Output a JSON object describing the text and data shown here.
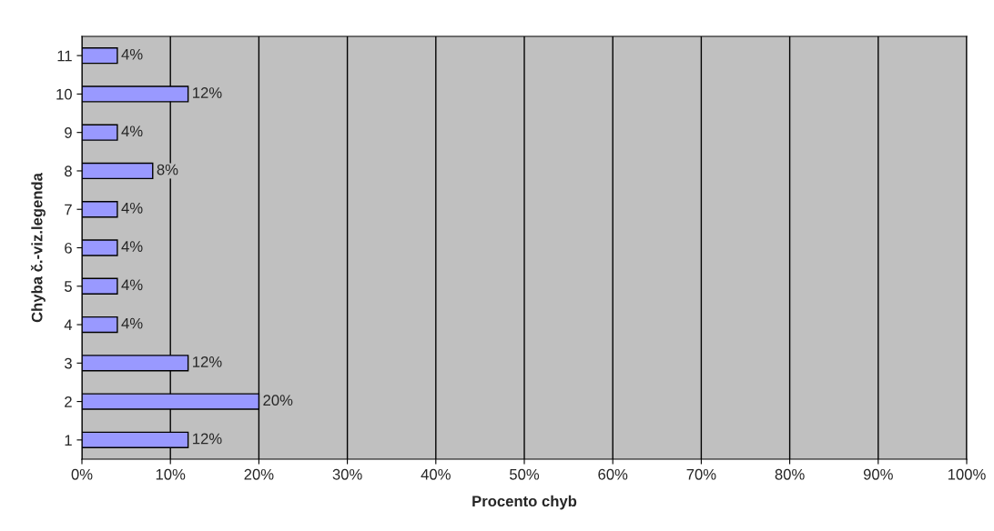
{
  "chart_data": {
    "type": "bar",
    "orientation": "horizontal",
    "xlabel": "Procento chyb",
    "ylabel": "Chyba č.-viz.legenda",
    "categories": [
      "11",
      "10",
      "9",
      "8",
      "7",
      "6",
      "5",
      "4",
      "3",
      "2",
      "1"
    ],
    "values": [
      4,
      12,
      4,
      8,
      4,
      4,
      4,
      4,
      12,
      20,
      12
    ],
    "value_labels": [
      "4%",
      "12%",
      "4%",
      "8%",
      "4%",
      "4%",
      "4%",
      "4%",
      "12%",
      "20%",
      "12%"
    ],
    "color": "#9999ff",
    "xlim": [
      0,
      100
    ],
    "xticks": [
      {
        "value": 0,
        "label": "0%"
      },
      {
        "value": 10,
        "label": "10%"
      },
      {
        "value": 20,
        "label": "20%"
      },
      {
        "value": 30,
        "label": "30%"
      },
      {
        "value": 40,
        "label": "40%"
      },
      {
        "value": 50,
        "label": "50%"
      },
      {
        "value": 60,
        "label": "60%"
      },
      {
        "value": 70,
        "label": "70%"
      },
      {
        "value": 80,
        "label": "80%"
      },
      {
        "value": 90,
        "label": "90%"
      },
      {
        "value": 100,
        "label": "100%"
      }
    ],
    "grid": "x"
  }
}
